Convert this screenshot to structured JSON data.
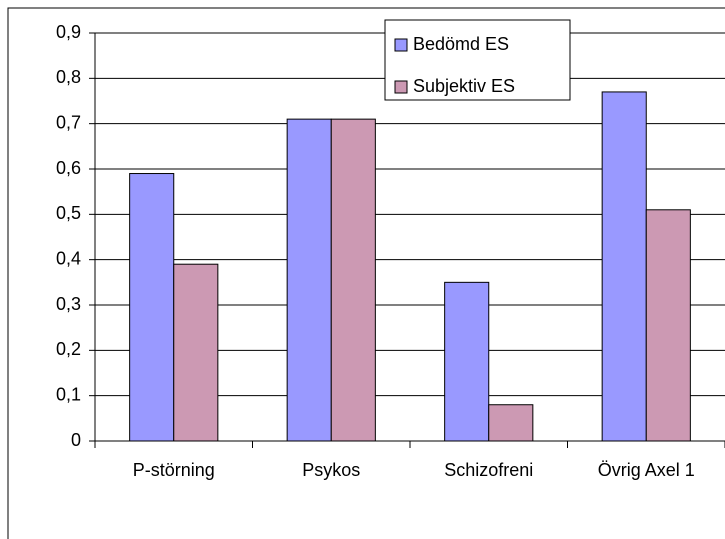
{
  "chart_data": {
    "type": "bar",
    "categories": [
      "P-störning",
      "Psykos",
      "Schizofreni",
      "Övrig Axel 1"
    ],
    "series": [
      {
        "name": "Bedömd ES",
        "color": "#9999ff",
        "values": [
          0.59,
          0.71,
          0.35,
          0.77
        ]
      },
      {
        "name": "Subjektiv ES",
        "color": "#cc99b3",
        "values": [
          0.39,
          0.71,
          0.08,
          0.51
        ]
      }
    ],
    "ylim": [
      0,
      0.9
    ],
    "yticks": [
      0,
      {
        "value": 0.1,
        "label": "0,1"
      },
      {
        "value": 0.2,
        "label": "0,2"
      },
      {
        "value": 0.3,
        "label": "0,3"
      },
      {
        "value": 0.4,
        "label": "0,4"
      },
      {
        "value": 0.5,
        "label": "0,5"
      },
      {
        "value": 0.6,
        "label": "0,6"
      },
      {
        "value": 0.7,
        "label": "0,7"
      },
      {
        "value": 0.8,
        "label": "0,8"
      },
      {
        "value": 0.9,
        "label": "0,9"
      }
    ],
    "grid": true,
    "legend": "top-right"
  }
}
